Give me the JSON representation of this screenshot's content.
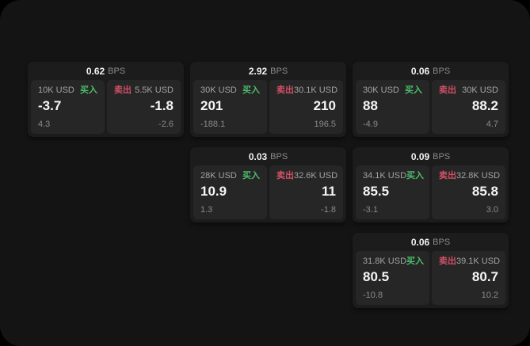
{
  "labels": {
    "bps_unit": "BPS",
    "buy": "买入",
    "sell": "卖出"
  },
  "colors": {
    "page_bg": "#000000",
    "window_bg": "#141414",
    "card_bg": "#1c1c1c",
    "panel_bg": "#262626",
    "text_primary": "#f5f5f5",
    "text_muted": "#8a8a8a",
    "buy_green": "#4cbf6c",
    "sell_red": "#d15066"
  },
  "cards": [
    {
      "bps": "0.62",
      "buy": {
        "amount": "10K USD",
        "price": "-3.7",
        "delta": "4.3"
      },
      "sell": {
        "amount": "5.5K USD",
        "price": "-1.8",
        "delta": "-2.6"
      }
    },
    {
      "bps": "2.92",
      "buy": {
        "amount": "30K USD",
        "price": "201",
        "delta": "-188.1"
      },
      "sell": {
        "amount": "30.1K USD",
        "price": "210",
        "delta": "196.5"
      }
    },
    {
      "bps": "0.06",
      "buy": {
        "amount": "30K USD",
        "price": "88",
        "delta": "-4.9"
      },
      "sell": {
        "amount": "30K USD",
        "price": "88.2",
        "delta": "4.7"
      }
    },
    {
      "bps": "0.03",
      "buy": {
        "amount": "28K USD",
        "price": "10.9",
        "delta": "1.3"
      },
      "sell": {
        "amount": "32.6K USD",
        "price": "11",
        "delta": "-1.8"
      }
    },
    {
      "bps": "0.09",
      "buy": {
        "amount": "34.1K USD",
        "price": "85.5",
        "delta": "-3.1"
      },
      "sell": {
        "amount": "32.8K USD",
        "price": "85.8",
        "delta": "3.0"
      }
    },
    {
      "bps": "0.06",
      "buy": {
        "amount": "31.8K USD",
        "price": "80.5",
        "delta": "-10.8"
      },
      "sell": {
        "amount": "39.1K USD",
        "price": "80.7",
        "delta": "10.2"
      }
    }
  ]
}
